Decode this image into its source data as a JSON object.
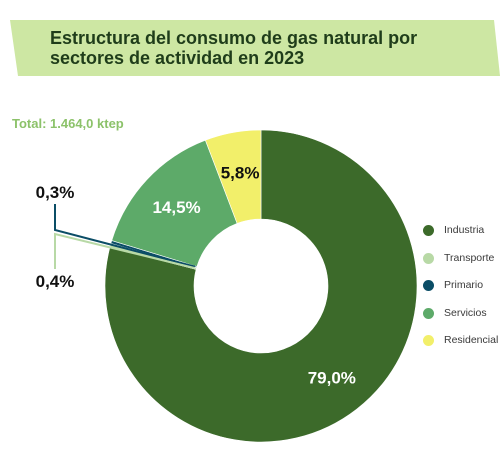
{
  "title": "Estructura del consumo de gas natural por sectores de actividad en 2023",
  "total_label": "Total: 1.464,0 ktep",
  "colors": {
    "banner": "#cde7a3",
    "accent": "#8cc26a"
  },
  "chart_data": {
    "type": "pie",
    "donut": true,
    "title": "Estructura del consumo de gas natural por sectores de actividad en 2023",
    "unit": "%",
    "legend_position": "right",
    "series": [
      {
        "name": "Industria",
        "value": 79.0,
        "label": "79,0%",
        "color": "#3c6a2a",
        "label_color": "#ffffff"
      },
      {
        "name": "Transporte",
        "value": 0.4,
        "label": "0,4%",
        "color": "#b8d9a6",
        "label_color": "#111111"
      },
      {
        "name": "Primario",
        "value": 0.3,
        "label": "0,3%",
        "color": "#0b4d66",
        "label_color": "#111111"
      },
      {
        "name": "Servicios",
        "value": 14.5,
        "label": "14,5%",
        "color": "#5daa69",
        "label_color": "#ffffff"
      },
      {
        "name": "Residencial",
        "value": 5.8,
        "label": "5,8%",
        "color": "#f2ef6a",
        "label_color": "#111111"
      }
    ]
  }
}
